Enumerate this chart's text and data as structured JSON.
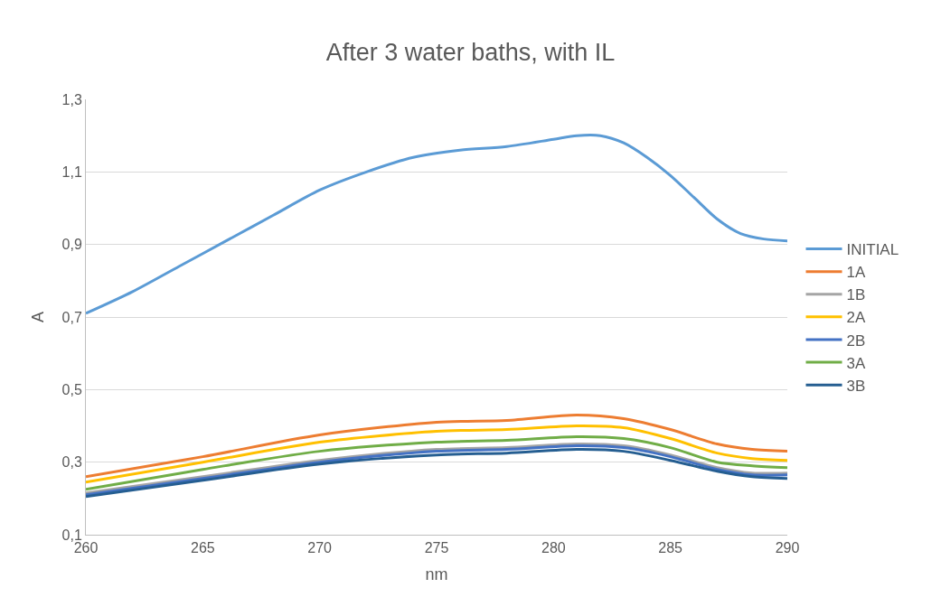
{
  "chart_data": {
    "type": "line",
    "title": "After 3 water baths, with IL",
    "xlabel": "nm",
    "ylabel": "A",
    "xlim": [
      260,
      290
    ],
    "xticks": [
      260,
      265,
      270,
      275,
      280,
      285,
      290
    ],
    "ylim": [
      0.1,
      1.3
    ],
    "yticks": [
      {
        "value": 0.1,
        "label": "0,1"
      },
      {
        "value": 0.3,
        "label": "0,3"
      },
      {
        "value": 0.5,
        "label": "0,5"
      },
      {
        "value": 0.7,
        "label": "0,7"
      },
      {
        "value": 0.9,
        "label": "0,9"
      },
      {
        "value": 1.1,
        "label": "1,1"
      },
      {
        "value": 1.3,
        "label": "1,3"
      }
    ],
    "grid": "y",
    "legend": "right",
    "marker": "none",
    "line_style": "solid",
    "series": [
      {
        "name": "INITIAL",
        "color": "#5b9bd5",
        "x": [
          260,
          262,
          264,
          266,
          268,
          270,
          272,
          274,
          276,
          278,
          280,
          281,
          282,
          283,
          284,
          285,
          286,
          287,
          288,
          289,
          290
        ],
        "values": [
          0.71,
          0.77,
          0.84,
          0.91,
          0.98,
          1.05,
          1.1,
          1.14,
          1.16,
          1.17,
          1.19,
          1.2,
          1.2,
          1.18,
          1.14,
          1.09,
          1.03,
          0.97,
          0.93,
          0.915,
          0.91
        ]
      },
      {
        "name": "1A",
        "color": "#ed7d31",
        "x": [
          260,
          265,
          270,
          275,
          278,
          281,
          283,
          285,
          287,
          288.5,
          290
        ],
        "values": [
          0.26,
          0.315,
          0.375,
          0.41,
          0.415,
          0.43,
          0.42,
          0.39,
          0.35,
          0.335,
          0.33
        ]
      },
      {
        "name": "1B",
        "color": "#a5a5a5",
        "x": [
          260,
          265,
          270,
          275,
          278,
          281,
          283,
          285,
          287,
          288.5,
          290
        ],
        "values": [
          0.215,
          0.26,
          0.305,
          0.335,
          0.34,
          0.35,
          0.345,
          0.32,
          0.285,
          0.27,
          0.27
        ]
      },
      {
        "name": "2A",
        "color": "#ffc000",
        "x": [
          260,
          265,
          270,
          275,
          278,
          281,
          283,
          285,
          287,
          288.5,
          290
        ],
        "values": [
          0.245,
          0.3,
          0.355,
          0.385,
          0.39,
          0.4,
          0.395,
          0.365,
          0.325,
          0.31,
          0.305
        ]
      },
      {
        "name": "2B",
        "color": "#4472c4",
        "x": [
          260,
          265,
          270,
          275,
          278,
          281,
          283,
          285,
          287,
          288.5,
          290
        ],
        "values": [
          0.21,
          0.255,
          0.3,
          0.33,
          0.335,
          0.345,
          0.34,
          0.315,
          0.28,
          0.265,
          0.265
        ]
      },
      {
        "name": "3A",
        "color": "#70ad47",
        "x": [
          260,
          265,
          270,
          275,
          278,
          281,
          283,
          285,
          287,
          288.5,
          290
        ],
        "values": [
          0.225,
          0.28,
          0.33,
          0.355,
          0.36,
          0.37,
          0.365,
          0.34,
          0.3,
          0.29,
          0.285
        ]
      },
      {
        "name": "3B",
        "color": "#255e91",
        "x": [
          260,
          265,
          270,
          275,
          278,
          281,
          283,
          285,
          287,
          288.5,
          290
        ],
        "values": [
          0.205,
          0.25,
          0.295,
          0.32,
          0.325,
          0.335,
          0.33,
          0.305,
          0.275,
          0.26,
          0.255
        ]
      }
    ]
  }
}
